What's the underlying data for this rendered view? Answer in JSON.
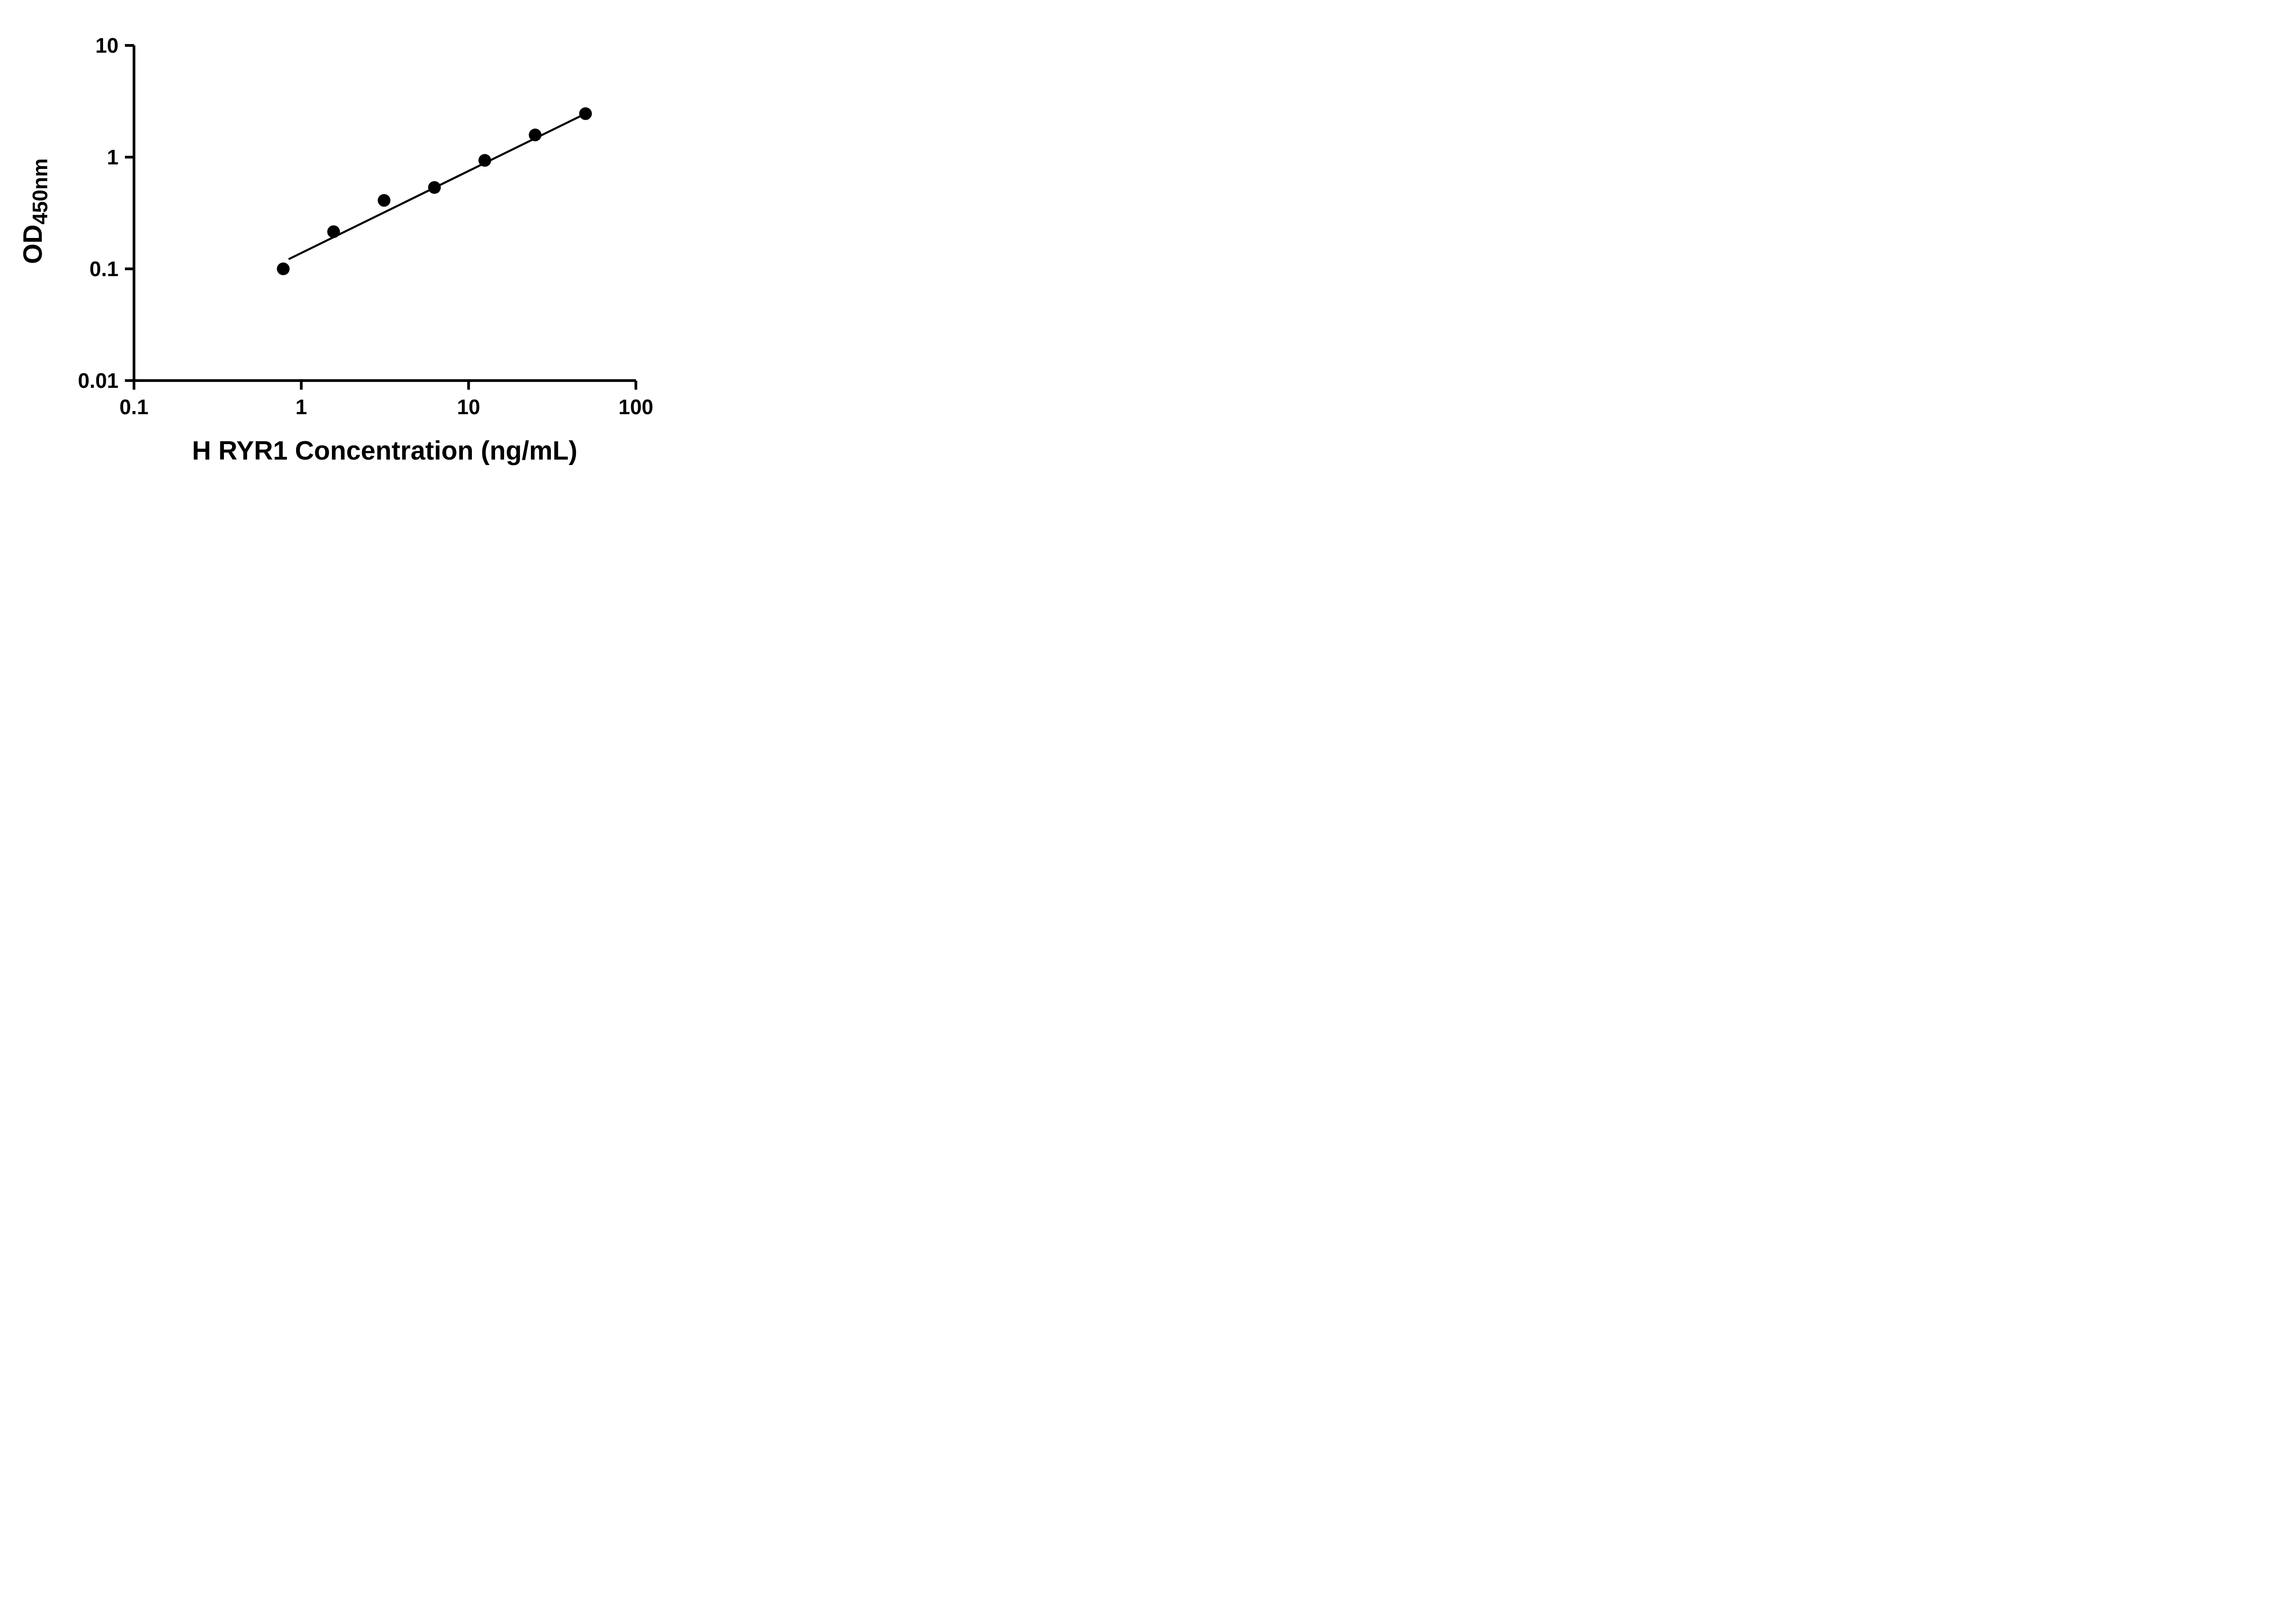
{
  "figure": {
    "background": "#ffffff",
    "axis_color": "#000000"
  },
  "chart_data": {
    "type": "scatter",
    "title": "",
    "xlabel": "H RYR1 Concentration (ng/mL)",
    "ylabel_main": "OD",
    "ylabel_sub": "450nm",
    "x_scale": "log",
    "y_scale": "log",
    "xlim": [
      0.1,
      100
    ],
    "ylim": [
      0.01,
      10
    ],
    "x_ticks": [
      0.1,
      1,
      10,
      100
    ],
    "y_ticks": [
      0.01,
      0.1,
      1,
      10
    ],
    "grid": false,
    "legend": false,
    "marker_color": "#000000",
    "line_color": "#000000",
    "points": [
      {
        "x": 0.78,
        "y": 0.1
      },
      {
        "x": 1.56,
        "y": 0.215
      },
      {
        "x": 3.125,
        "y": 0.41
      },
      {
        "x": 6.25,
        "y": 0.535
      },
      {
        "x": 12.5,
        "y": 0.935
      },
      {
        "x": 25,
        "y": 1.58
      },
      {
        "x": 50,
        "y": 2.45
      }
    ],
    "trend_line": {
      "x1": 0.84,
      "y1": 0.122,
      "x2": 50,
      "y2": 2.45
    }
  }
}
